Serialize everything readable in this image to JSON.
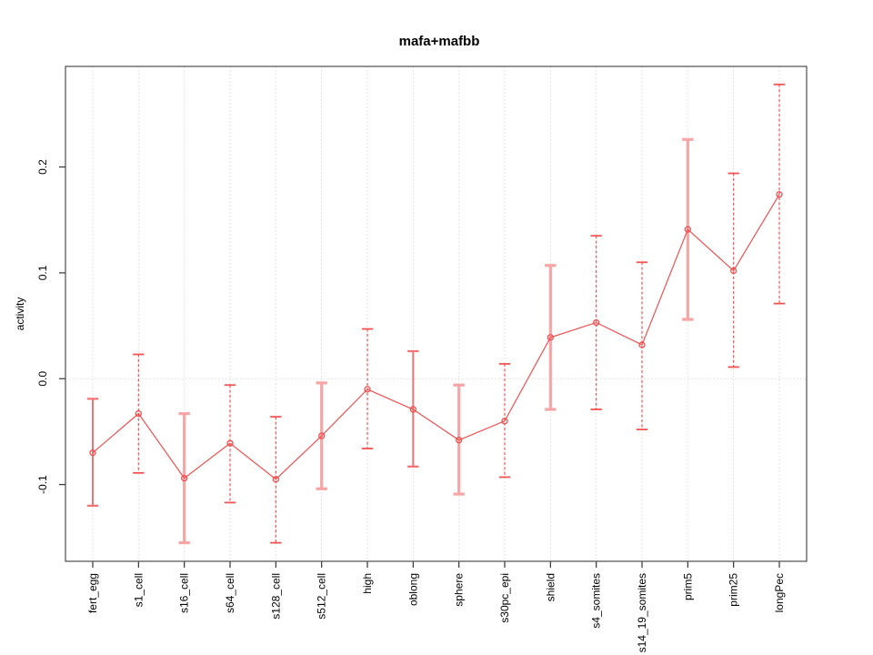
{
  "chart_data": {
    "type": "line",
    "title": "mafa+mafbb",
    "xlabel": "",
    "ylabel": "activity",
    "categories": [
      "fert_egg",
      "s1_cell",
      "s16_cell",
      "s64_cell",
      "s128_cell",
      "s512_cell",
      "high",
      "oblong",
      "sphere",
      "s30pc_epi",
      "shield",
      "s4_somites",
      "s14_19_somites",
      "prim5",
      "prim25",
      "longPec"
    ],
    "series": [
      {
        "name": "mafa+mafbb activity",
        "values": [
          -0.07,
          -0.033,
          -0.094,
          -0.061,
          -0.095,
          -0.054,
          -0.01,
          -0.029,
          -0.058,
          -0.04,
          0.039,
          0.053,
          0.032,
          0.141,
          0.102,
          0.174
        ],
        "upper": [
          -0.019,
          0.023,
          -0.033,
          -0.006,
          -0.036,
          -0.004,
          0.047,
          0.026,
          -0.006,
          0.014,
          0.107,
          0.135,
          0.11,
          0.226,
          0.194,
          0.278
        ],
        "lower": [
          -0.12,
          -0.089,
          -0.155,
          -0.117,
          -0.155,
          -0.104,
          -0.066,
          -0.083,
          -0.109,
          -0.093,
          -0.029,
          -0.029,
          -0.048,
          0.056,
          0.011,
          0.071
        ],
        "errorbar_styles": [
          "solid",
          "dashed",
          "thick",
          "dashed",
          "dashed",
          "thick",
          "dashed",
          "solid",
          "thick",
          "dashed",
          "thick",
          "dashed",
          "dashed",
          "thick",
          "dashed",
          "dashed"
        ]
      }
    ],
    "yticks": [
      "-0.1",
      "0.0",
      "0.1",
      "0.2"
    ],
    "ytick_values": [
      -0.1,
      0.0,
      0.1,
      0.2
    ],
    "ylim": [
      -0.1725,
      0.295
    ],
    "grid": {
      "vertical_at_each_category": true,
      "horizontal_at_zero": true,
      "style": "dotted"
    },
    "legend_position": "none",
    "marker": "open-circle",
    "colors": {
      "line": "#f04f4f",
      "point": "#f04f4f",
      "errorbar_dashed": "#f25353",
      "errorbar_solid": "#f37272",
      "errorbar_thick": "#f8a5a5",
      "grid": "#dcdcdc",
      "box": "#4d4d4d",
      "tick": "#333333"
    }
  }
}
